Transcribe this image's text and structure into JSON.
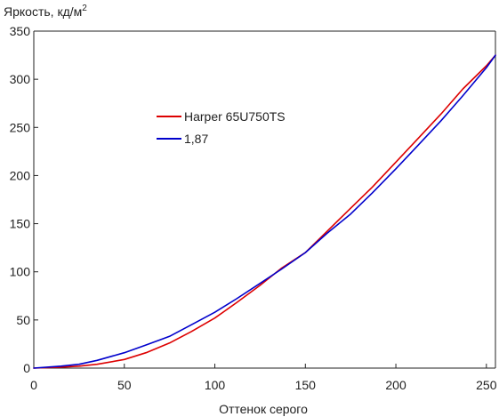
{
  "chart_data": {
    "type": "line",
    "ylabel": "Яркость, кд/м",
    "ylabel_superscript": "2",
    "xlabel": "Оттенок серого",
    "xlim": [
      0,
      255
    ],
    "ylim": [
      0,
      350
    ],
    "x_ticks": [
      0,
      50,
      100,
      150,
      200,
      250
    ],
    "x_tick_labels": [
      "0",
      "50",
      "100",
      "150",
      "200",
      "250"
    ],
    "y_ticks": [
      0,
      50,
      100,
      150,
      200,
      250,
      300,
      350
    ],
    "y_tick_labels": [
      "0",
      "50",
      "100",
      "150",
      "200",
      "250",
      "300",
      "350"
    ],
    "grid": false,
    "legend_position": "upper-left",
    "series": [
      {
        "name": "Harper 65U750TS",
        "color": "#dd0000",
        "x": [
          0,
          15,
          25,
          35,
          50,
          62,
          75,
          87,
          100,
          112,
          125,
          137,
          150,
          162,
          175,
          187,
          200,
          212,
          225,
          237,
          250,
          255
        ],
        "y": [
          0,
          1,
          2,
          4,
          9,
          16,
          26,
          38,
          52,
          68,
          86,
          104,
          120,
          142,
          166,
          188,
          214,
          238,
          264,
          290,
          314,
          325
        ]
      },
      {
        "name": "1,87",
        "color": "#0000cc",
        "x": [
          0,
          15,
          25,
          35,
          50,
          62,
          75,
          87,
          100,
          112,
          125,
          137,
          150,
          162,
          175,
          187,
          200,
          212,
          225,
          237,
          250,
          255
        ],
        "y": [
          0,
          2,
          4,
          8,
          16,
          24,
          33,
          45,
          58,
          72,
          88,
          103,
          120,
          140,
          160,
          182,
          207,
          231,
          257,
          283,
          312,
          325
        ]
      }
    ]
  }
}
